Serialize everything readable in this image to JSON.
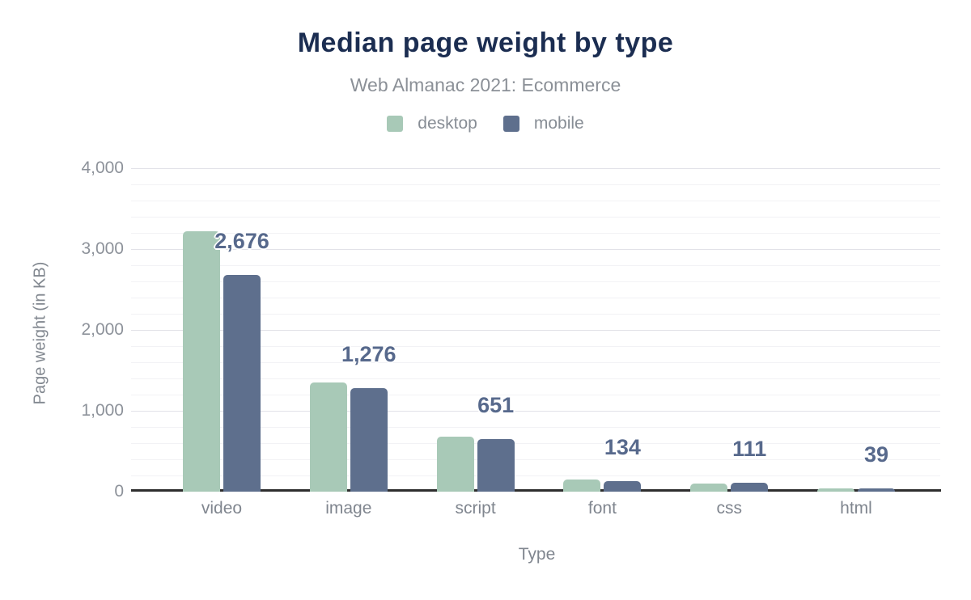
{
  "chart": {
    "title": "Median page weight by type",
    "subtitle": "Web Almanac 2021: Ecommerce",
    "x_axis_label": "Type",
    "y_axis_label": "Page weight (in KB)",
    "legend": [
      {
        "label": "desktop",
        "color": "#a8c9b7"
      },
      {
        "label": "mobile",
        "color": "#5e6f8d"
      }
    ],
    "colors": {
      "title": "#1b2d51",
      "subtitle": "#8b9097",
      "axis_text": "#80868f",
      "data_label": "#57698c",
      "axis_line": "#2e2e2e"
    }
  },
  "chart_data": {
    "type": "bar",
    "categories": [
      "video",
      "image",
      "script",
      "font",
      "css",
      "html"
    ],
    "series": [
      {
        "name": "desktop",
        "color": "#a8c9b7",
        "values": [
          3220,
          1350,
          685,
          155,
          105,
          45
        ]
      },
      {
        "name": "mobile",
        "color": "#5e6f8d",
        "values": [
          2676,
          1276,
          651,
          134,
          111,
          39
        ],
        "labels": [
          "2,676",
          "1,276",
          "651",
          "134",
          "111",
          "39"
        ]
      }
    ],
    "title": "Median page weight by type",
    "subtitle": "Web Almanac 2021: Ecommerce",
    "xlabel": "Type",
    "ylabel": "Page weight (in KB)",
    "ylim": [
      0,
      4000
    ],
    "y_ticks": [
      {
        "value": 0,
        "label": "0"
      },
      {
        "value": 1000,
        "label": "1,000"
      },
      {
        "value": 2000,
        "label": "2,000"
      },
      {
        "value": 3000,
        "label": "3,000"
      },
      {
        "value": 4000,
        "label": "4,000"
      }
    ],
    "minor_grid_step": 200,
    "grid": true,
    "legend_position": "top",
    "data_labels_series": "mobile"
  }
}
